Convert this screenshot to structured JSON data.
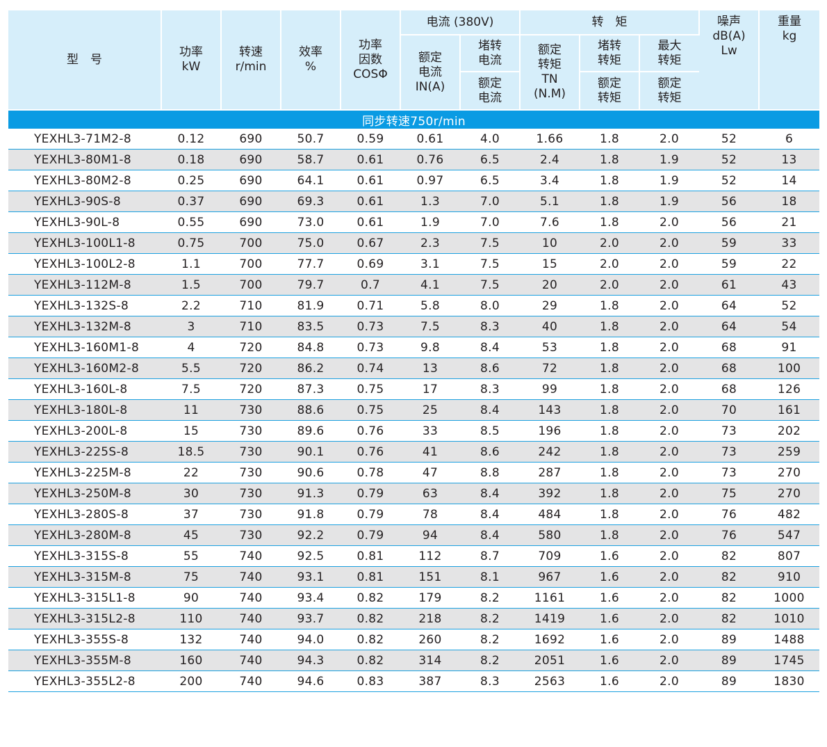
{
  "header": {
    "model": "型　号",
    "power": "功率\nkW",
    "speed": "转速\nr/min",
    "efficiency": "效率\n%",
    "power_factor": "功率\n因数\nCOSΦ",
    "current_group": "电流 (380V)",
    "rated_current": "额定\n电流\nIN(A)",
    "locked_current_top": "堵转\n电流",
    "locked_current_bottom": "额定\n电流",
    "torque_group": "转　矩",
    "rated_torque": "额定\n转矩\nTN\n(N.M)",
    "locked_torque_top": "堵转\n转矩",
    "locked_torque_bottom": "额定\n转矩",
    "max_torque_top": "最大\n转矩",
    "max_torque_bottom": "额定\n转矩",
    "noise": "噪声\ndB(A)\nLw",
    "weight": "重量\nkg"
  },
  "section_title": "同步转速750r/min",
  "rows": [
    [
      "YEXHL3-71M2-8",
      "0.12",
      "690",
      "50.7",
      "0.59",
      "0.61",
      "4.0",
      "1.66",
      "1.8",
      "2.0",
      "52",
      "6"
    ],
    [
      "YEXHL3-80M1-8",
      "0.18",
      "690",
      "58.7",
      "0.61",
      "0.76",
      "6.5",
      "2.4",
      "1.8",
      "1.9",
      "52",
      "13"
    ],
    [
      "YEXHL3-80M2-8",
      "0.25",
      "690",
      "64.1",
      "0.61",
      "0.97",
      "6.5",
      "3.4",
      "1.8",
      "1.9",
      "52",
      "14"
    ],
    [
      "YEXHL3-90S-8",
      "0.37",
      "690",
      "69.3",
      "0.61",
      "1.3",
      "7.0",
      "5.1",
      "1.8",
      "1.9",
      "56",
      "18"
    ],
    [
      "YEXHL3-90L-8",
      "0.55",
      "690",
      "73.0",
      "0.61",
      "1.9",
      "7.0",
      "7.6",
      "1.8",
      "2.0",
      "56",
      "21"
    ],
    [
      "YEXHL3-100L1-8",
      "0.75",
      "700",
      "75.0",
      "0.67",
      "2.3",
      "7.5",
      "10",
      "2.0",
      "2.0",
      "59",
      "33"
    ],
    [
      "YEXHL3-100L2-8",
      "1.1",
      "700",
      "77.7",
      "0.69",
      "3.1",
      "7.5",
      "15",
      "2.0",
      "2.0",
      "59",
      "22"
    ],
    [
      "YEXHL3-112M-8",
      "1.5",
      "700",
      "79.7",
      "0.7",
      "4.1",
      "7.5",
      "20",
      "2.0",
      "2.0",
      "61",
      "43"
    ],
    [
      "YEXHL3-132S-8",
      "2.2",
      "710",
      "81.9",
      "0.71",
      "5.8",
      "8.0",
      "29",
      "1.8",
      "2.0",
      "64",
      "52"
    ],
    [
      "YEXHL3-132M-8",
      "3",
      "710",
      "83.5",
      "0.73",
      "7.5",
      "8.3",
      "40",
      "1.8",
      "2.0",
      "64",
      "54"
    ],
    [
      "YEXHL3-160M1-8",
      "4",
      "720",
      "84.8",
      "0.73",
      "9.8",
      "8.4",
      "53",
      "1.8",
      "2.0",
      "68",
      "91"
    ],
    [
      "YEXHL3-160M2-8",
      "5.5",
      "720",
      "86.2",
      "0.74",
      "13",
      "8.6",
      "72",
      "1.8",
      "2.0",
      "68",
      "100"
    ],
    [
      "YEXHL3-160L-8",
      "7.5",
      "720",
      "87.3",
      "0.75",
      "17",
      "8.3",
      "99",
      "1.8",
      "2.0",
      "68",
      "126"
    ],
    [
      "YEXHL3-180L-8",
      "11",
      "730",
      "88.6",
      "0.75",
      "25",
      "8.4",
      "143",
      "1.8",
      "2.0",
      "70",
      "161"
    ],
    [
      "YEXHL3-200L-8",
      "15",
      "730",
      "89.6",
      "0.76",
      "33",
      "8.5",
      "196",
      "1.8",
      "2.0",
      "73",
      "202"
    ],
    [
      "YEXHL3-225S-8",
      "18.5",
      "730",
      "90.1",
      "0.76",
      "41",
      "8.6",
      "242",
      "1.8",
      "2.0",
      "73",
      "259"
    ],
    [
      "YEXHL3-225M-8",
      "22",
      "730",
      "90.6",
      "0.78",
      "47",
      "8.8",
      "287",
      "1.8",
      "2.0",
      "73",
      "270"
    ],
    [
      "YEXHL3-250M-8",
      "30",
      "730",
      "91.3",
      "0.79",
      "63",
      "8.4",
      "392",
      "1.8",
      "2.0",
      "75",
      "270"
    ],
    [
      "YEXHL3-280S-8",
      "37",
      "730",
      "91.8",
      "0.79",
      "78",
      "8.4",
      "484",
      "1.8",
      "2.0",
      "76",
      "482"
    ],
    [
      "YEXHL3-280M-8",
      "45",
      "730",
      "92.2",
      "0.79",
      "94",
      "8.4",
      "580",
      "1.8",
      "2.0",
      "76",
      "547"
    ],
    [
      "YEXHL3-315S-8",
      "55",
      "740",
      "92.5",
      "0.81",
      "112",
      "8.7",
      "709",
      "1.6",
      "2.0",
      "82",
      "807"
    ],
    [
      "YEXHL3-315M-8",
      "75",
      "740",
      "93.1",
      "0.81",
      "151",
      "8.1",
      "967",
      "1.6",
      "2.0",
      "82",
      "910"
    ],
    [
      "YEXHL3-315L1-8",
      "90",
      "740",
      "93.4",
      "0.82",
      "179",
      "8.2",
      "1161",
      "1.6",
      "2.0",
      "82",
      "1000"
    ],
    [
      "YEXHL3-315L2-8",
      "110",
      "740",
      "93.7",
      "0.82",
      "218",
      "8.2",
      "1419",
      "1.6",
      "2.0",
      "82",
      "1010"
    ],
    [
      "YEXHL3-355S-8",
      "132",
      "740",
      "94.0",
      "0.82",
      "260",
      "8.2",
      "1692",
      "1.6",
      "2.0",
      "89",
      "1488"
    ],
    [
      "YEXHL3-355M-8",
      "160",
      "740",
      "94.3",
      "0.82",
      "314",
      "8.2",
      "2051",
      "1.6",
      "2.0",
      "89",
      "1745"
    ],
    [
      "YEXHL3-355L2-8",
      "200",
      "740",
      "94.6",
      "0.83",
      "387",
      "8.3",
      "2563",
      "1.6",
      "2.0",
      "89",
      "1830"
    ]
  ],
  "colors": {
    "header_bg": "#d6eefa",
    "section_bg": "#0a9be3",
    "row_alt_bg": "#e4e4e5",
    "rule": "#1aa0e0"
  }
}
